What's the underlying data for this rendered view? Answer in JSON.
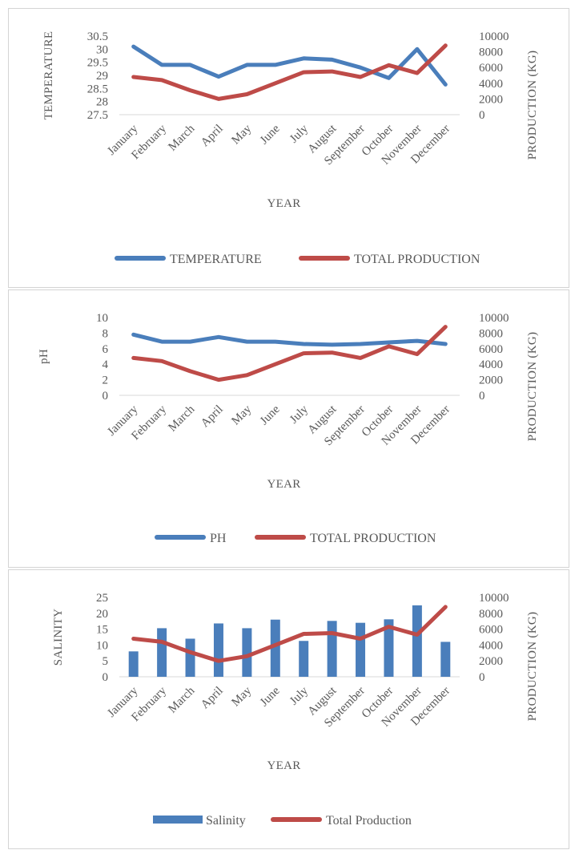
{
  "chart_data": [
    {
      "type": "line",
      "categories": [
        "January",
        "February",
        "March",
        "April",
        "May",
        "June",
        "July",
        "August",
        "September",
        "October",
        "November",
        "December"
      ],
      "xlabel": "YEAR",
      "ylabel": "TEMPERATURE",
      "y2label": "PRODUCTION (KG)",
      "ylim": [
        27.5,
        30.5
      ],
      "yticks": [
        "27.5",
        "28",
        "28.5",
        "29",
        "29.5",
        "30",
        "30.5"
      ],
      "y2lim": [
        0,
        10000
      ],
      "y2ticks": [
        "0",
        "2000",
        "4000",
        "6000",
        "8000",
        "10000"
      ],
      "series": [
        {
          "name": "TEMPERATURE",
          "axis": "left",
          "color": "#4a7ebb",
          "values": [
            30.1,
            29.4,
            29.4,
            28.95,
            29.4,
            29.4,
            29.65,
            29.6,
            29.3,
            28.9,
            30.0,
            28.65
          ]
        },
        {
          "name": "TOTAL PRODUCTION",
          "axis": "right",
          "color": "#be4b48",
          "values": [
            4800,
            4400,
            3100,
            2000,
            2600,
            4000,
            5400,
            5500,
            4800,
            6300,
            5300,
            8800
          ]
        }
      ],
      "legend": "bottom"
    },
    {
      "type": "line",
      "categories": [
        "January",
        "February",
        "March",
        "April",
        "May",
        "June",
        "July",
        "August",
        "September",
        "October",
        "November",
        "December"
      ],
      "xlabel": "YEAR",
      "ylabel": "pH",
      "y2label": "PRODUCTION (KG)",
      "ylim": [
        0,
        10
      ],
      "yticks": [
        "0",
        "2",
        "4",
        "6",
        "8",
        "10"
      ],
      "y2lim": [
        0,
        10000
      ],
      "y2ticks": [
        "0",
        "2000",
        "4000",
        "6000",
        "8000",
        "10000"
      ],
      "series": [
        {
          "name": "PH",
          "axis": "left",
          "color": "#4a7ebb",
          "values": [
            7.8,
            6.9,
            6.9,
            7.5,
            6.9,
            6.9,
            6.6,
            6.5,
            6.6,
            6.8,
            7.0,
            6.6
          ]
        },
        {
          "name": "TOTAL PRODUCTION",
          "axis": "right",
          "color": "#be4b48",
          "values": [
            4800,
            4400,
            3100,
            2000,
            2600,
            4000,
            5400,
            5500,
            4800,
            6300,
            5300,
            8800
          ]
        }
      ],
      "legend": "bottom"
    },
    {
      "type": "bar",
      "categories": [
        "January",
        "February",
        "March",
        "April",
        "May",
        "June",
        "July",
        "August",
        "September",
        "October",
        "November",
        "December"
      ],
      "xlabel": "YEAR",
      "ylabel": "SALINITY",
      "y2label": "PRODUCTION (KG)",
      "ylim": [
        0,
        25
      ],
      "yticks": [
        "0",
        "5",
        "10",
        "15",
        "20",
        "25"
      ],
      "y2lim": [
        0,
        10000
      ],
      "y2ticks": [
        "0",
        "2000",
        "4000",
        "6000",
        "8000",
        "10000"
      ],
      "series": [
        {
          "name": "Salinity",
          "kind": "bar",
          "axis": "left",
          "color": "#4a7ebb",
          "values": [
            8,
            15.3,
            12,
            16.8,
            15.3,
            18,
            11.3,
            17.6,
            17,
            18.1,
            22.5,
            11
          ]
        },
        {
          "name": "Total Production",
          "kind": "line",
          "axis": "right",
          "color": "#be4b48",
          "values": [
            4800,
            4400,
            3100,
            2000,
            2600,
            4000,
            5400,
            5500,
            4800,
            6300,
            5300,
            8800
          ]
        }
      ],
      "legend": "bottom"
    }
  ]
}
